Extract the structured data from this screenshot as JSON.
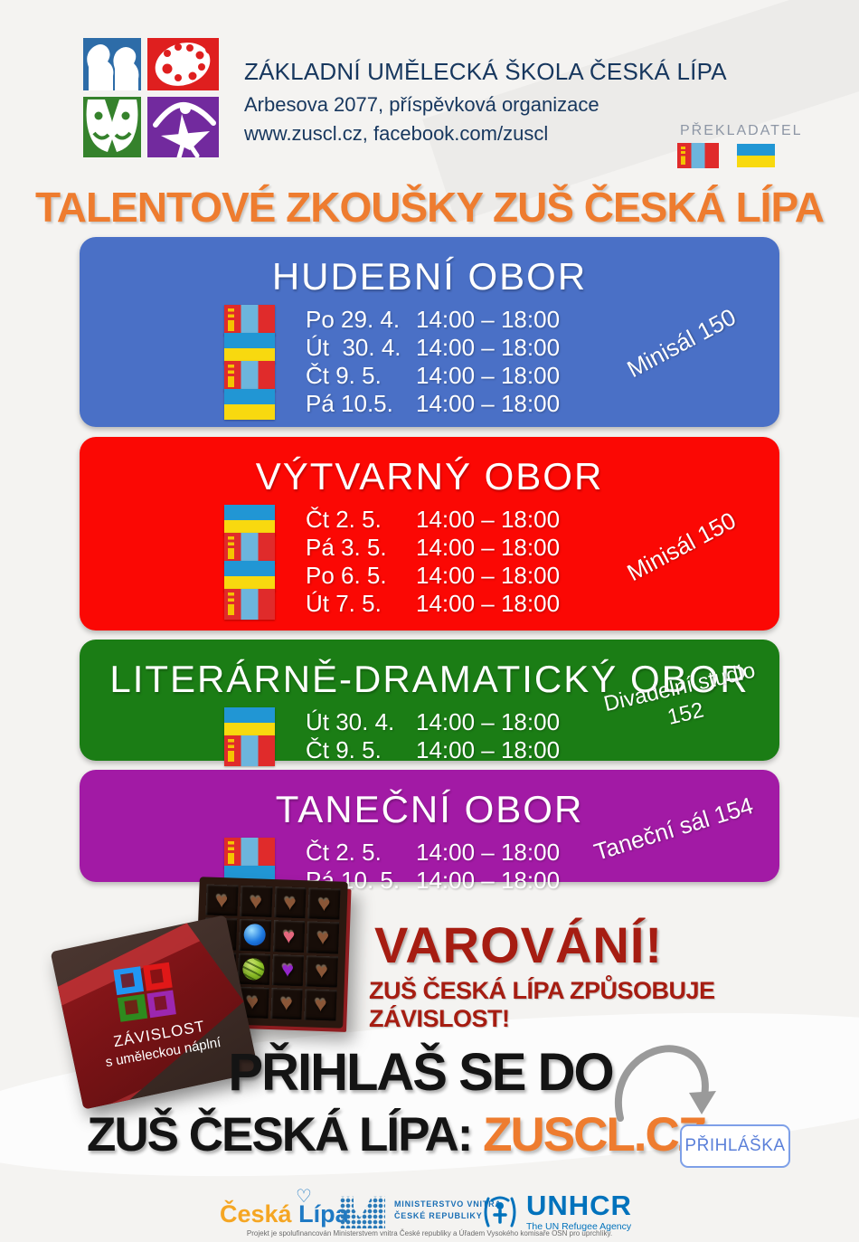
{
  "header": {
    "school_name": "ZÁKLADNÍ UMĚLECKÁ ŠKOLA ČESKÁ LÍPA",
    "address": "Arbesova 2077, příspěvková organizace",
    "web": "www.zuscl.cz, facebook.com/zuscl",
    "translator_label": "PŘEKLADATEL"
  },
  "title": "TALENTOVÉ ZKOUŠKY ZUŠ ČESKÁ LÍPA",
  "sections": [
    {
      "name": "HUDEBNÍ OBOR",
      "color": "#4a70c6",
      "room": "Minisál 150",
      "rows": [
        {
          "flag": "mn",
          "date": "Po 29. 4.",
          "time": "14:00 – 18:00"
        },
        {
          "flag": "ua",
          "date": "Út  30. 4.",
          "time": "14:00 – 18:00"
        },
        {
          "flag": "mn",
          "date": "Čt 9. 5.",
          "time": "14:00 – 18:00"
        },
        {
          "flag": "ua",
          "date": "Pá 10.5.",
          "time": "14:00 – 18:00"
        }
      ]
    },
    {
      "name": "VÝTVARNÝ OBOR",
      "color": "#fb0804",
      "room": "Minisál 150",
      "rows": [
        {
          "flag": "ua",
          "date": "Čt 2. 5.",
          "time": "14:00 – 18:00"
        },
        {
          "flag": "mn",
          "date": "Pá 3. 5.",
          "time": "14:00 – 18:00"
        },
        {
          "flag": "ua",
          "date": "Po 6. 5.",
          "time": "14:00 – 18:00"
        },
        {
          "flag": "mn",
          "date": "Út 7. 5.",
          "time": "14:00 – 18:00"
        }
      ]
    },
    {
      "name": "LITERÁRNĚ-DRAMATICKÝ OBOR",
      "color": "#1b7d15",
      "room": "Divadelní studio 152",
      "rows": [
        {
          "flag": "ua",
          "date": "Út 30. 4.",
          "time": "14:00 – 18:00"
        },
        {
          "flag": "mn",
          "date": "Čt 9. 5.",
          "time": "14:00 – 18:00"
        }
      ]
    },
    {
      "name": "TANEČNÍ OBOR",
      "color": "#a21aa5",
      "room": "Taneční sál 154",
      "rows": [
        {
          "flag": "mn",
          "date": "Čt 2. 5.",
          "time": "14:00 – 18:00"
        },
        {
          "flag": "ua",
          "date": "Pá 10. 5.",
          "time": "14:00 – 18:00"
        }
      ]
    }
  ],
  "chocolate_lid": {
    "line1": "ZÁVISLOST",
    "line2": "s uměleckou náplní"
  },
  "warning": {
    "title": "VAROVÁNÍ!",
    "subtitle": "ZUŠ ČESKÁ LÍPA ZPŮSOBUJE ZÁVISLOST!"
  },
  "cta": {
    "line1": "PŘIHLAŠ SE DO",
    "line2_black": "ZUŠ ČESKÁ LÍPA: ",
    "line2_orange": "ZUSCL.CZ",
    "button_label": "PŘIHLÁŠKA"
  },
  "footer": {
    "ceska_lipa_part1": "Česká ",
    "ceska_lipa_part2": "Lípa",
    "ministry_line1": "MINISTERSTVO VNITRA",
    "ministry_line2": "ČESKÉ REPUBLIKY",
    "unhcr_name": "UNHCR",
    "unhcr_tagline": "The UN Refugee Agency",
    "fine_print": "Projekt je spolufinancován Ministerstvem vnitra České republiky a Úřadem Vysokého komisaře OSN pro uprchlíky."
  },
  "icons": {
    "mongolia_flag": "red-lightblue-red vertical stripes with yellow soyombo",
    "ukraine_flag": "blue over yellow",
    "school_logo": "2x2 grid: faces, palette, masks, ballerina",
    "arrow": "gray curved arrow to application button"
  },
  "colors": {
    "accent_orange": "#ee7c2f",
    "navy_text": "#17375e",
    "warning_red": "#a61d12",
    "button_blue": "#5b80d9",
    "block_blue": "#4a70c6",
    "block_red": "#fb0804",
    "block_green": "#1b7d15",
    "block_purple": "#a21aa5"
  }
}
